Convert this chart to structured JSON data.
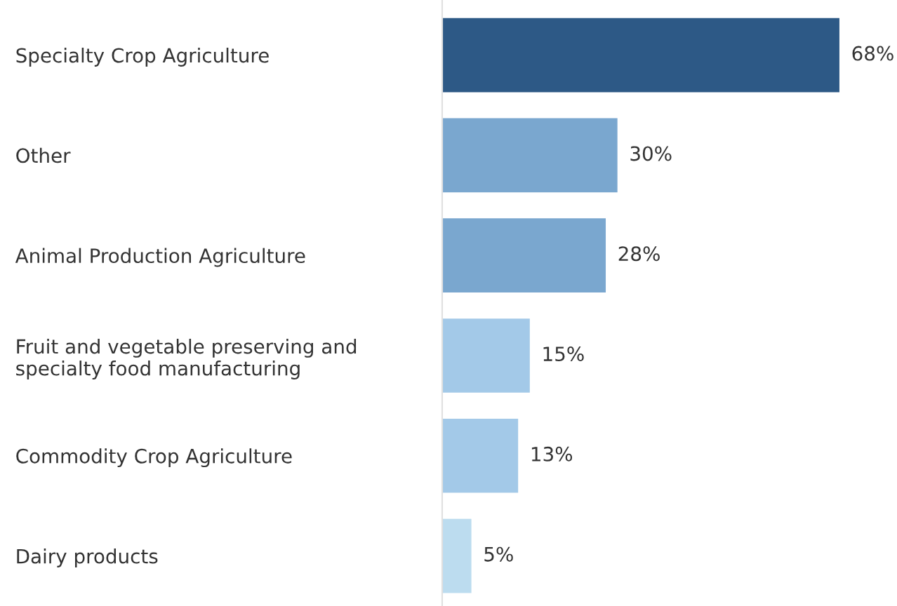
{
  "chart_data": {
    "type": "bar",
    "orientation": "horizontal",
    "categories": [
      "Specialty Crop Agriculture",
      "Other",
      "Animal Production Agriculture",
      "Fruit and vegetable preserving and\nspecialty food manufacturing",
      "Commodity Crop Agriculture",
      "Dairy products"
    ],
    "values": [
      68,
      30,
      28,
      15,
      13,
      5
    ],
    "colors": [
      "#2d5986",
      "#7aa7cf",
      "#7aa7cf",
      "#a3c9e8",
      "#a3c9e8",
      "#bcdcef"
    ],
    "value_labels": [
      "68%",
      "30%",
      "28%",
      "15%",
      "13%",
      "5%"
    ],
    "grid": false,
    "legend": false,
    "tick_labels": "y"
  }
}
